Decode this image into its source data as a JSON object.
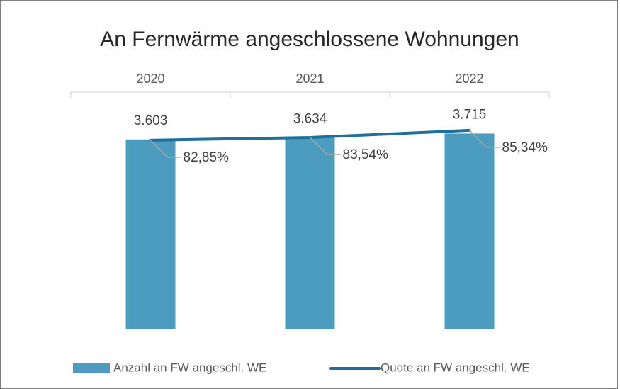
{
  "chart_data": {
    "type": "bar+line",
    "title": "An Fernwärme angeschlossene Wohnungen",
    "categories": [
      "2020",
      "2021",
      "2022"
    ],
    "series": [
      {
        "name": "Anzahl an FW angeschl. WE",
        "type": "bar",
        "color": "#4b9cbf",
        "values": [
          3603,
          3634,
          3715
        ],
        "value_labels": [
          "3.603",
          "3.634",
          "3.715"
        ]
      },
      {
        "name": "Quote an FW angeschl. WE",
        "type": "line",
        "axis": "y2",
        "color": "#1f6f9b",
        "values": [
          82.85,
          83.54,
          85.34
        ],
        "value_labels": [
          "82,85%",
          "83,54%",
          "85,34%"
        ]
      }
    ],
    "ylim": [
      0,
      4500
    ],
    "y2lim": [
      35,
      95
    ],
    "legend": "bottom"
  }
}
